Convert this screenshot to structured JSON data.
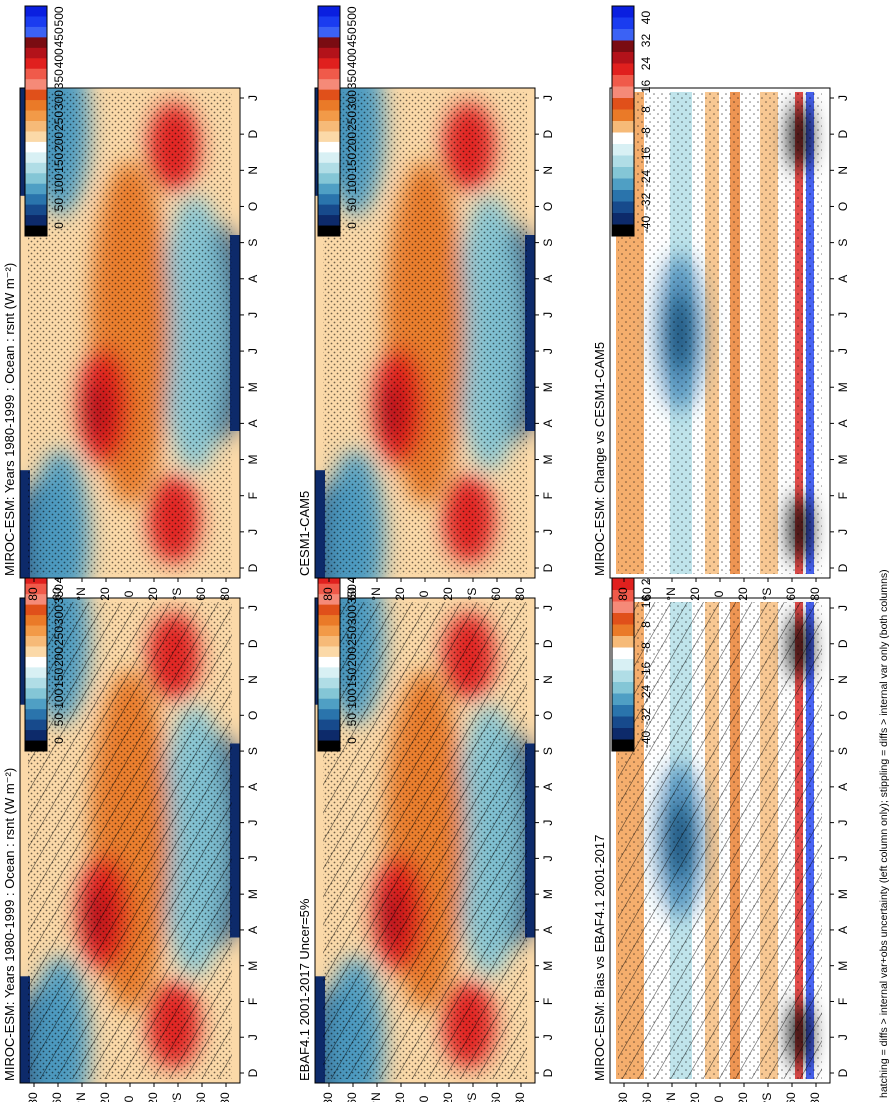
{
  "caption": "hatching = diffs > internal var+obs uncertainty (left column only); stippling = diffs > internal var only (both columns)",
  "month_ticks": [
    "D",
    "J",
    "F",
    "M",
    "A",
    "M",
    "J",
    "J",
    "A",
    "S",
    "O",
    "N",
    "D",
    "J"
  ],
  "lat_ticks": [
    "80",
    "60",
    "°N",
    "20",
    "0",
    "20",
    "°S",
    "60",
    "80"
  ],
  "colorbars": {
    "absolute": {
      "labels": [
        "500",
        "450",
        "400",
        "350",
        "300",
        "250",
        "200",
        "150",
        "100",
        "50",
        "0"
      ],
      "colors": [
        "#0a1fe0",
        "#1a3cf0",
        "#3b62f5",
        "#7a0c12",
        "#b3121a",
        "#e0201e",
        "#f05a4a",
        "#f58a78",
        "#e0501a",
        "#ea7a28",
        "#f29a48",
        "#f6ba78",
        "#fbd9a8",
        "#ffffff",
        "#d8f0f4",
        "#b0dde6",
        "#84c6d6",
        "#4f9fc4",
        "#2a74ac",
        "#174a8c",
        "#0d2a6a",
        "#000000"
      ]
    },
    "difference": {
      "labels": [
        "40",
        "32",
        "24",
        "16",
        "8",
        "-8",
        "-16",
        "-24",
        "-32",
        "-40"
      ],
      "colors": [
        "#0a1fe0",
        "#1a3cf0",
        "#3b62f5",
        "#7a0c12",
        "#b3121a",
        "#e0201e",
        "#f05a4a",
        "#f58a78",
        "#e0501a",
        "#ea7a28",
        "#f6ba78",
        "#ffffff",
        "#d8f0f4",
        "#b0dde6",
        "#84c6d6",
        "#4f9fc4",
        "#2a74ac",
        "#174a8c",
        "#0d2a6a",
        "#000000"
      ]
    }
  },
  "panels": [
    {
      "title": "MIROC-ESM: Years 1980-1999 : Ocean : rsnt (W m⁻²)",
      "colorbar": "absolute",
      "hatch": true,
      "stipple": "dense"
    },
    {
      "title": "MIROC-ESM: Years 1980-1999 : Ocean : rsnt (W m⁻²)",
      "colorbar": "absolute",
      "hatch": false,
      "stipple": "dense"
    },
    {
      "title": "EBAF4.1 2001-2017 Uncer=5%",
      "colorbar": "absolute",
      "hatch": true,
      "stipple": "dense"
    },
    {
      "title": "CESM1-CAM5",
      "colorbar": "absolute",
      "hatch": false,
      "stipple": "dense"
    },
    {
      "title": "MIROC-ESM: Bias vs EBAF4.1 2001-2017",
      "colorbar": "difference",
      "hatch": true,
      "stipple": "sparse"
    },
    {
      "title": "MIROC-ESM: Change vs CESM1-CAM5",
      "colorbar": "difference",
      "hatch": false,
      "stipple": "sparse"
    }
  ],
  "chart_data": [
    {
      "type": "heatmap",
      "title": "MIROC-ESM: Years 1980-1999 : Ocean : rsnt (W m⁻²)",
      "x": "month",
      "y": "latitude",
      "range": [
        0,
        500
      ]
    },
    {
      "type": "heatmap",
      "title": "MIROC-ESM: Years 1980-1999 : Ocean : rsnt (W m⁻²)",
      "x": "month",
      "y": "latitude",
      "range": [
        0,
        500
      ]
    },
    {
      "type": "heatmap",
      "title": "EBAF4.1 2001-2017 Uncer=5%",
      "x": "month",
      "y": "latitude",
      "range": [
        0,
        500
      ]
    },
    {
      "type": "heatmap",
      "title": "CESM1-CAM5",
      "x": "month",
      "y": "latitude",
      "range": [
        0,
        500
      ]
    },
    {
      "type": "heatmap",
      "title": "MIROC-ESM: Bias vs EBAF4.1 2001-2017",
      "x": "month",
      "y": "latitude",
      "range": [
        -40,
        40
      ]
    },
    {
      "type": "heatmap",
      "title": "MIROC-ESM: Change vs CESM1-CAM5",
      "x": "month",
      "y": "latitude",
      "range": [
        -40,
        40
      ]
    }
  ]
}
